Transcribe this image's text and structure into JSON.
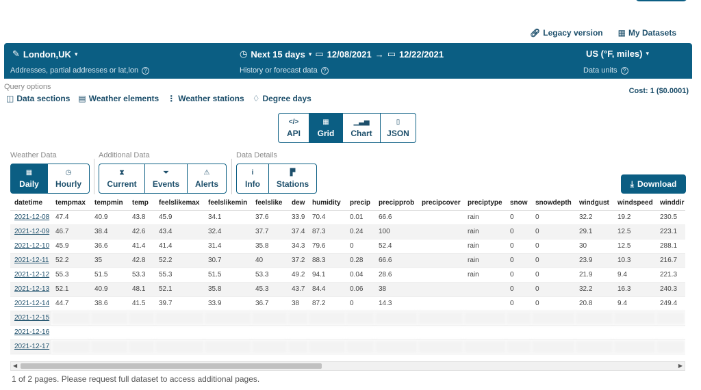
{
  "top": {
    "legacy_label": "Legacy version",
    "datasets_label": "My Datasets"
  },
  "bar": {
    "location": "London,UK",
    "location_hint": "Addresses, partial addresses or lat,lon",
    "range": "Next 15 days",
    "date_from": "12/08/2021",
    "date_to": "12/22/2021",
    "range_hint": "History or forecast data",
    "units": "US (°F, miles)",
    "units_hint": "Data units"
  },
  "query": {
    "label": "Query options",
    "links": [
      "Data sections",
      "Weather elements",
      "Weather stations",
      "Degree days"
    ],
    "cost": "Cost: 1 ($0.0001)"
  },
  "views": [
    "API",
    "Grid",
    "Chart",
    "JSON"
  ],
  "groups": {
    "weather_label": "Weather Data",
    "weather": [
      "Daily",
      "Hourly"
    ],
    "additional_label": "Additional Data",
    "additional": [
      "Current",
      "Events",
      "Alerts"
    ],
    "details_label": "Data Details",
    "details": [
      "Info",
      "Stations"
    ]
  },
  "download_label": "Download",
  "table": {
    "columns": [
      "datetime",
      "tempmax",
      "tempmin",
      "temp",
      "feelslikemax",
      "feelslikemin",
      "feelslike",
      "dew",
      "humidity",
      "precip",
      "precipprob",
      "precipcover",
      "preciptype",
      "snow",
      "snowdepth",
      "windgust",
      "windspeed",
      "winddir"
    ],
    "rows": [
      [
        "2021-12-08",
        "47.4",
        "40.9",
        "43.8",
        "45.9",
        "34.1",
        "37.6",
        "33.9",
        "70.4",
        "0.01",
        "66.6",
        "",
        "rain",
        "0",
        "0",
        "32.2",
        "19.2",
        "230.5"
      ],
      [
        "2021-12-09",
        "46.7",
        "38.4",
        "42.6",
        "43.4",
        "32.4",
        "37.7",
        "37.4",
        "87.3",
        "0.24",
        "100",
        "",
        "rain",
        "0",
        "0",
        "29.1",
        "12.5",
        "223.1"
      ],
      [
        "2021-12-10",
        "45.9",
        "36.6",
        "41.4",
        "41.4",
        "31.4",
        "35.8",
        "34.3",
        "79.6",
        "0",
        "52.4",
        "",
        "rain",
        "0",
        "0",
        "30",
        "12.5",
        "288.1"
      ],
      [
        "2021-12-11",
        "52.2",
        "35",
        "42.8",
        "52.2",
        "30.7",
        "40",
        "37.2",
        "88.3",
        "0.28",
        "66.6",
        "",
        "rain",
        "0",
        "0",
        "23.9",
        "10.3",
        "216.7"
      ],
      [
        "2021-12-12",
        "55.3",
        "51.5",
        "53.3",
        "55.3",
        "51.5",
        "53.3",
        "49.2",
        "94.1",
        "0.04",
        "28.6",
        "",
        "rain",
        "0",
        "0",
        "21.9",
        "9.4",
        "221.3"
      ],
      [
        "2021-12-13",
        "52.1",
        "40.9",
        "48.1",
        "52.1",
        "35.8",
        "45.3",
        "43.7",
        "84.4",
        "0.06",
        "38",
        "",
        "",
        "0",
        "0",
        "32.2",
        "16.3",
        "240.3"
      ],
      [
        "2021-12-14",
        "44.7",
        "38.6",
        "41.5",
        "39.7",
        "33.9",
        "36.7",
        "38",
        "87.2",
        "0",
        "14.3",
        "",
        "",
        "0",
        "0",
        "20.8",
        "9.4",
        "249.4"
      ],
      [
        "2021-12-15",
        "",
        "",
        "",
        "",
        "",
        "",
        "",
        "",
        "",
        "",
        "",
        "",
        "",
        "",
        "",
        "",
        ""
      ],
      [
        "2021-12-16",
        "",
        "",
        "",
        "",
        "",
        "",
        "",
        "",
        "",
        "",
        "",
        "",
        "",
        "",
        "",
        "",
        ""
      ],
      [
        "2021-12-17",
        "",
        "",
        "",
        "",
        "",
        "",
        "",
        "",
        "",
        "",
        "",
        "",
        "",
        "",
        "",
        "",
        ""
      ]
    ]
  },
  "footer": "1 of 2 pages. Please request full dataset to access additional pages."
}
